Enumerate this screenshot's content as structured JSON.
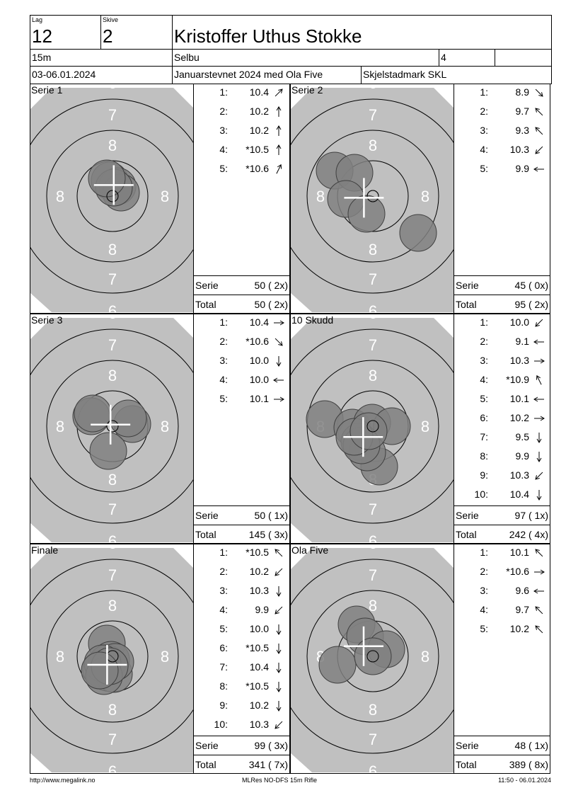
{
  "header": {
    "lag_label": "Lag",
    "lag": "12",
    "skive_label": "Skive",
    "skive": "2",
    "name": "Kristoffer Uthus Stokke",
    "distance": "15m",
    "place": "Selbu",
    "number": "4",
    "extra": "",
    "date": "03-06.01.2024",
    "event": "Januarstevnet 2024 med Ola Five",
    "club": "Skjelstadmark SKL"
  },
  "colors": {
    "target_bg": "#c0c0c0",
    "shot": "#808080",
    "ring": "#000000"
  },
  "ring_labels": {
    "r6": "6",
    "r7": "7",
    "r8": "8"
  },
  "panels": [
    {
      "title": "Serie 1",
      "shots": [
        {
          "n": "1:",
          "v": "10.4",
          "dir": "ne"
        },
        {
          "n": "2:",
          "v": "10.2",
          "dir": "n"
        },
        {
          "n": "3:",
          "v": "10.2",
          "dir": "n"
        },
        {
          "n": "4:",
          "v": "*10.5",
          "dir": "n"
        },
        {
          "n": "5:",
          "v": "*10.6",
          "dir": "nne"
        }
      ],
      "impacts": [
        [
          -4,
          -22
        ],
        [
          7,
          -14
        ],
        [
          12,
          -5
        ],
        [
          2,
          -12
        ],
        [
          -8,
          -25
        ]
      ],
      "serie_label": "Serie",
      "serie": "50 ( 2x)",
      "total_label": "Total",
      "total": "50 ( 2x)"
    },
    {
      "title": "Serie 2",
      "shots": [
        {
          "n": "1:",
          "v": "8.9",
          "dir": "se"
        },
        {
          "n": "2:",
          "v": "9.7",
          "dir": "nw"
        },
        {
          "n": "3:",
          "v": "9.3",
          "dir": "nw"
        },
        {
          "n": "4:",
          "v": "10.3",
          "dir": "sw"
        },
        {
          "n": "5:",
          "v": "9.9",
          "dir": "w"
        }
      ],
      "impacts": [
        [
          -54,
          -36
        ],
        [
          -26,
          -33
        ],
        [
          -38,
          4
        ],
        [
          -9,
          25
        ],
        [
          64,
          52
        ]
      ],
      "serie_label": "Serie",
      "serie": "45 ( 0x)",
      "total_label": "Total",
      "total": "95 ( 2x)"
    },
    {
      "title": "Serie 3",
      "shots": [
        {
          "n": "1:",
          "v": "10.4",
          "dir": "e"
        },
        {
          "n": "2:",
          "v": "*10.6",
          "dir": "se"
        },
        {
          "n": "3:",
          "v": "10.0",
          "dir": "s"
        },
        {
          "n": "4:",
          "v": "10.0",
          "dir": "w"
        },
        {
          "n": "5:",
          "v": "10.1",
          "dir": "e"
        }
      ],
      "impacts": [
        [
          -30,
          -14
        ],
        [
          28,
          -3
        ],
        [
          -6,
          35
        ],
        [
          22,
          -11
        ],
        [
          -28,
          -18
        ]
      ],
      "serie_label": "Serie",
      "serie": "50 ( 1x)",
      "total_label": "Total",
      "total": "145 ( 3x)"
    },
    {
      "title": "10 Skudd",
      "shots": [
        {
          "n": "1:",
          "v": "10.0",
          "dir": "sw"
        },
        {
          "n": "2:",
          "v": "9.1",
          "dir": "w"
        },
        {
          "n": "3:",
          "v": "10.3",
          "dir": "e"
        },
        {
          "n": "4:",
          "v": "*10.9",
          "dir": "nnw"
        },
        {
          "n": "5:",
          "v": "10.1",
          "dir": "w"
        },
        {
          "n": "6:",
          "v": "10.2",
          "dir": "e"
        },
        {
          "n": "7:",
          "v": "9.5",
          "dir": "s"
        },
        {
          "n": "8:",
          "v": "9.9",
          "dir": "s"
        },
        {
          "n": "9:",
          "v": "10.3",
          "dir": "sw"
        },
        {
          "n": "10:",
          "v": "10.4",
          "dir": "s"
        }
      ],
      "impacts": [
        [
          -68,
          -10
        ],
        [
          -29,
          2
        ],
        [
          -1,
          -5
        ],
        [
          27,
          0
        ],
        [
          -19,
          22
        ],
        [
          9,
          57
        ],
        [
          -8,
          37
        ],
        [
          -16,
          27
        ],
        [
          -26,
          15
        ],
        [
          -6,
          7
        ]
      ],
      "serie_label": "Serie",
      "serie": "97 ( 1x)",
      "total_label": "Total",
      "total": "242 ( 4x)"
    },
    {
      "title": "Finale",
      "shots": [
        {
          "n": "1:",
          "v": "*10.5",
          "dir": "nw"
        },
        {
          "n": "2:",
          "v": "10.2",
          "dir": "sw"
        },
        {
          "n": "3:",
          "v": "10.3",
          "dir": "s"
        },
        {
          "n": "4:",
          "v": "9.9",
          "dir": "sw"
        },
        {
          "n": "5:",
          "v": "10.0",
          "dir": "s"
        },
        {
          "n": "6:",
          "v": "*10.5",
          "dir": "s"
        },
        {
          "n": "7:",
          "v": "10.4",
          "dir": "s"
        },
        {
          "n": "8:",
          "v": "*10.5",
          "dir": "s"
        },
        {
          "n": "9:",
          "v": "10.2",
          "dir": "s"
        },
        {
          "n": "10:",
          "v": "10.3",
          "dir": "sw"
        }
      ],
      "impacts": [
        [
          -8,
          -18
        ],
        [
          -2,
          5
        ],
        [
          -16,
          18
        ],
        [
          2,
          25
        ],
        [
          -8,
          10
        ],
        [
          4,
          8
        ],
        [
          -14,
          10
        ],
        [
          -12,
          28
        ],
        [
          -4,
          14
        ],
        [
          -18,
          20
        ]
      ],
      "serie_label": "Serie",
      "serie": "99 ( 3x)",
      "total_label": "Total",
      "total": "341 ( 7x)"
    },
    {
      "title": "Ola Five",
      "shots": [
        {
          "n": "1:",
          "v": "10.1",
          "dir": "nw"
        },
        {
          "n": "2:",
          "v": "*10.6",
          "dir": "e"
        },
        {
          "n": "3:",
          "v": "9.6",
          "dir": "w"
        },
        {
          "n": "4:",
          "v": "9.7",
          "dir": "nw"
        },
        {
          "n": "5:",
          "v": "10.2",
          "dir": "nw"
        }
      ],
      "impacts": [
        [
          -23,
          -45
        ],
        [
          -11,
          -28
        ],
        [
          -50,
          12
        ],
        [
          19,
          -10
        ],
        [
          0,
          0
        ]
      ],
      "serie_label": "Serie",
      "serie": "48 ( 1x)",
      "total_label": "Total",
      "total": "389 ( 8x)"
    }
  ],
  "footer": {
    "left": "http://www.megalink.no",
    "center": "MLRes NO-DFS 15m Rifle",
    "right": "11:50 - 06.01.2024"
  }
}
